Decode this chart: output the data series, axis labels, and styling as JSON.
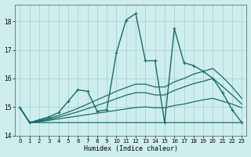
{
  "xlabel": "Humidex (Indice chaleur)",
  "bg_color": "#ceeeed",
  "grid_color": "#9ecfce",
  "line_color": "#1a6b6b",
  "xlim": [
    -0.5,
    23.5
  ],
  "ylim": [
    14.0,
    18.6
  ],
  "yticks": [
    14,
    15,
    16,
    17,
    18
  ],
  "xticks": [
    0,
    1,
    2,
    3,
    4,
    5,
    6,
    7,
    8,
    9,
    10,
    11,
    12,
    13,
    14,
    15,
    16,
    17,
    18,
    19,
    20,
    21,
    22,
    23
  ],
  "series": [
    {
      "x": [
        0,
        1,
        2,
        3,
        4,
        5,
        6,
        7,
        8,
        9,
        10,
        11,
        12,
        13,
        14,
        15,
        16,
        17,
        18,
        19,
        20,
        21,
        22,
        23
      ],
      "y": [
        14.97,
        14.45,
        14.55,
        14.65,
        14.8,
        15.2,
        15.6,
        15.55,
        14.85,
        14.9,
        16.9,
        18.05,
        18.28,
        16.62,
        16.62,
        14.45,
        17.75,
        16.55,
        16.45,
        16.25,
        16.0,
        15.5,
        14.9,
        14.45
      ],
      "marker": "+",
      "markersize": 3.5,
      "linewidth": 1.0,
      "zorder": 5
    },
    {
      "x": [
        0,
        1,
        2,
        3,
        4,
        5,
        6,
        7,
        8,
        9,
        10,
        11,
        12,
        13,
        14,
        15,
        16,
        17,
        18,
        19,
        20,
        21,
        22,
        23
      ],
      "y": [
        14.97,
        14.45,
        14.45,
        14.45,
        14.45,
        14.45,
        14.45,
        14.45,
        14.45,
        14.45,
        14.45,
        14.45,
        14.45,
        14.45,
        14.45,
        14.45,
        14.45,
        14.45,
        14.45,
        14.45,
        14.45,
        14.45,
        14.45,
        14.45
      ],
      "marker": null,
      "markersize": 0,
      "linewidth": 0.9,
      "zorder": 2
    },
    {
      "x": [
        0,
        1,
        2,
        3,
        4,
        5,
        6,
        7,
        8,
        9,
        10,
        11,
        12,
        13,
        14,
        15,
        16,
        17,
        18,
        19,
        20,
        21,
        22,
        23
      ],
      "y": [
        14.97,
        14.45,
        14.48,
        14.53,
        14.58,
        14.63,
        14.68,
        14.73,
        14.78,
        14.83,
        14.88,
        14.93,
        14.98,
        15.0,
        14.97,
        14.97,
        15.05,
        15.1,
        15.18,
        15.25,
        15.3,
        15.2,
        15.1,
        14.97
      ],
      "marker": null,
      "markersize": 0,
      "linewidth": 0.9,
      "zorder": 2
    },
    {
      "x": [
        0,
        1,
        2,
        3,
        4,
        5,
        6,
        7,
        8,
        9,
        10,
        11,
        12,
        13,
        14,
        15,
        16,
        17,
        18,
        19,
        20,
        21,
        22,
        23
      ],
      "y": [
        14.97,
        14.45,
        14.5,
        14.56,
        14.64,
        14.73,
        14.83,
        14.94,
        15.05,
        15.17,
        15.29,
        15.41,
        15.5,
        15.5,
        15.42,
        15.42,
        15.58,
        15.7,
        15.82,
        15.9,
        16.0,
        15.72,
        15.42,
        15.1
      ],
      "marker": null,
      "markersize": 0,
      "linewidth": 0.9,
      "zorder": 2
    },
    {
      "x": [
        0,
        1,
        2,
        3,
        4,
        5,
        6,
        7,
        8,
        9,
        10,
        11,
        12,
        13,
        14,
        15,
        16,
        17,
        18,
        19,
        20,
        21,
        22,
        23
      ],
      "y": [
        14.97,
        14.45,
        14.52,
        14.6,
        14.7,
        14.82,
        14.95,
        15.1,
        15.25,
        15.4,
        15.55,
        15.68,
        15.8,
        15.8,
        15.7,
        15.7,
        15.88,
        16.0,
        16.15,
        16.25,
        16.35,
        16.05,
        15.7,
        15.3
      ],
      "marker": null,
      "markersize": 0,
      "linewidth": 0.9,
      "zorder": 2
    }
  ]
}
